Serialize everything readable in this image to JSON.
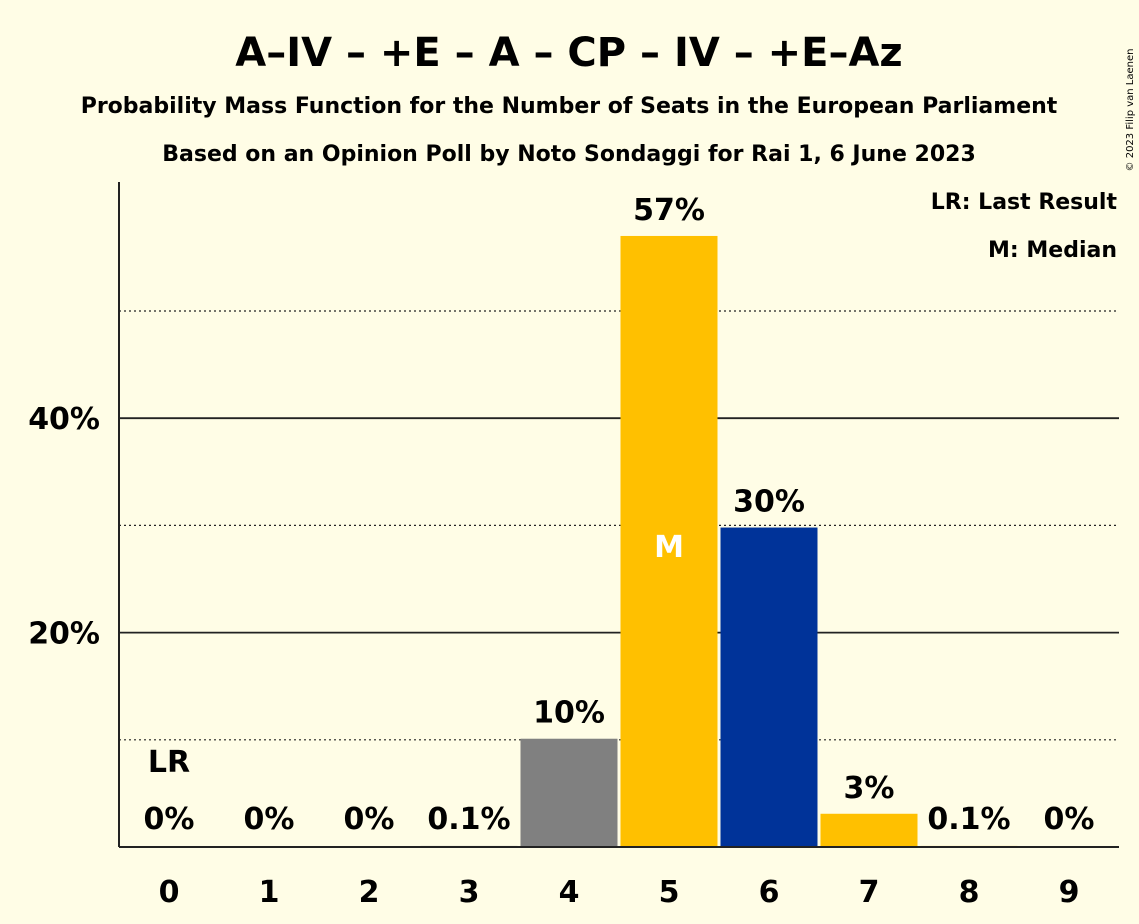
{
  "chart_data": {
    "type": "bar",
    "title": "A–IV – +E – A – CP – IV – +E–Az",
    "subtitle": "Probability Mass Function for the Number of Seats in the European Parliament",
    "subtitle2": "Based on an Opinion Poll by Noto Sondaggi for Rai 1, 6 June 2023",
    "copyright": "© 2023 Filip van Laenen",
    "categories": [
      "0",
      "1",
      "2",
      "3",
      "4",
      "5",
      "6",
      "7",
      "8",
      "9"
    ],
    "values": [
      0,
      0,
      0,
      0.1,
      10.1,
      57,
      29.8,
      3.1,
      0.1,
      0
    ],
    "value_labels": [
      "0%",
      "0%",
      "0%",
      "0.1%",
      "10%",
      "57%",
      "30%",
      "3%",
      "0.1%",
      "0%"
    ],
    "bar_colors": [
      "#808080",
      "#808080",
      "#808080",
      "#808080",
      "#808080",
      "#ffc000",
      "#003399",
      "#ffc000",
      "#ffc000",
      "#ffc000"
    ],
    "ylim": [
      0,
      62
    ],
    "yticks": [
      20,
      40
    ],
    "ytick_labels": [
      "20%",
      "40%"
    ],
    "minor_gridlines": [
      10,
      30,
      50
    ],
    "last_result": {
      "seat": "0",
      "label": "LR"
    },
    "median": {
      "seat": "5",
      "label": "M"
    },
    "legend": {
      "position": "top-right",
      "entries": [
        "LR: Last Result",
        "M: Median"
      ]
    }
  }
}
